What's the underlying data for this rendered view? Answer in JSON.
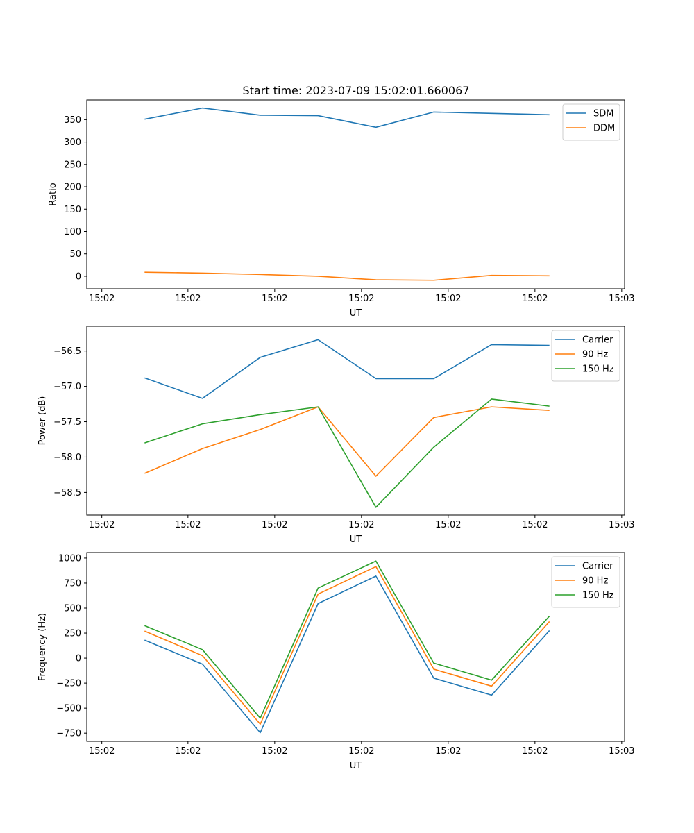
{
  "figure": {
    "title": "Start time: 2023-07-09 15:02:01.660067"
  },
  "chart_data": [
    {
      "type": "line",
      "title": "Start time: 2023-07-09 15:02:01.660067",
      "xlabel": "UT",
      "ylabel": "Ratio",
      "xlim": [
        0,
        9.3
      ],
      "ylim": [
        -28,
        394
      ],
      "x": [
        1,
        2,
        3,
        4,
        5,
        6,
        7,
        8
      ],
      "xticks": [
        0.26,
        1.75,
        3.25,
        4.75,
        6.25,
        7.75,
        9.25
      ],
      "xtick_labels": [
        "15:02",
        "15:02",
        "15:02",
        "15:02",
        "15:02",
        "15:02",
        "15:02"
      ],
      "xtick_label_last": "15:03",
      "yticks": [
        0,
        50,
        100,
        150,
        200,
        250,
        300,
        350
      ],
      "ytick_labels": [
        "0",
        "50",
        "100",
        "150",
        "200",
        "250",
        "300",
        "350"
      ],
      "legend_position": "top-right",
      "series": [
        {
          "name": "SDM",
          "color": "#1f77b4",
          "values": [
            351,
            376,
            360,
            359,
            333,
            367,
            364,
            361
          ]
        },
        {
          "name": "DDM",
          "color": "#ff7f0e",
          "values": [
            9,
            7,
            4,
            0,
            -8,
            -9,
            2,
            1
          ]
        }
      ]
    },
    {
      "type": "line",
      "title": "",
      "xlabel": "UT",
      "ylabel": "Power (dB)",
      "xlim": [
        0,
        9.3
      ],
      "ylim": [
        -58.82,
        -56.15
      ],
      "x": [
        1,
        2,
        3,
        4,
        5,
        6,
        7,
        8
      ],
      "xticks": [
        0.26,
        1.75,
        3.25,
        4.75,
        6.25,
        7.75,
        9.25
      ],
      "xtick_labels": [
        "15:02",
        "15:02",
        "15:02",
        "15:02",
        "15:02",
        "15:02",
        "15:02"
      ],
      "xtick_label_last": "15:03",
      "yticks": [
        -58.5,
        -58.0,
        -57.5,
        -57.0,
        -56.5
      ],
      "ytick_labels": [
        "−58.5",
        "−58.0",
        "−57.5",
        "−57.0",
        "−56.5"
      ],
      "legend_position": "top-right",
      "series": [
        {
          "name": "Carrier",
          "color": "#1f77b4",
          "values": [
            -56.88,
            -57.17,
            -56.59,
            -56.34,
            -56.89,
            -56.89,
            -56.41,
            -56.42
          ]
        },
        {
          "name": "90 Hz",
          "color": "#ff7f0e",
          "values": [
            -58.23,
            -57.88,
            -57.61,
            -57.29,
            -58.27,
            -57.44,
            -57.29,
            -57.34
          ]
        },
        {
          "name": "150 Hz",
          "color": "#2ca02c",
          "values": [
            -57.8,
            -57.53,
            -57.4,
            -57.29,
            -58.71,
            -57.86,
            -57.18,
            -57.28
          ]
        }
      ]
    },
    {
      "type": "line",
      "title": "",
      "xlabel": "UT",
      "ylabel": "Frequency (Hz)",
      "xlim": [
        0,
        9.3
      ],
      "ylim": [
        -832,
        1055
      ],
      "x": [
        1,
        2,
        3,
        4,
        5,
        6,
        7,
        8
      ],
      "xticks": [
        0.26,
        1.75,
        3.25,
        4.75,
        6.25,
        7.75,
        9.25
      ],
      "xtick_labels": [
        "15:02",
        "15:02",
        "15:02",
        "15:02",
        "15:02",
        "15:02",
        "15:02"
      ],
      "xtick_label_last": "15:03",
      "yticks": [
        -750,
        -500,
        -250,
        0,
        250,
        500,
        750,
        1000
      ],
      "ytick_labels": [
        "−750",
        "−500",
        "−250",
        "0",
        "250",
        "500",
        "750",
        "1000"
      ],
      "legend_position": "top-right",
      "series": [
        {
          "name": "Carrier",
          "color": "#1f77b4",
          "values": [
            180,
            -60,
            -745,
            545,
            820,
            -200,
            -370,
            275
          ]
        },
        {
          "name": "90 Hz",
          "color": "#ff7f0e",
          "values": [
            270,
            25,
            -660,
            640,
            915,
            -110,
            -280,
            365
          ]
        },
        {
          "name": "150 Hz",
          "color": "#2ca02c",
          "values": [
            325,
            85,
            -600,
            700,
            970,
            -50,
            -220,
            420
          ]
        }
      ]
    }
  ]
}
